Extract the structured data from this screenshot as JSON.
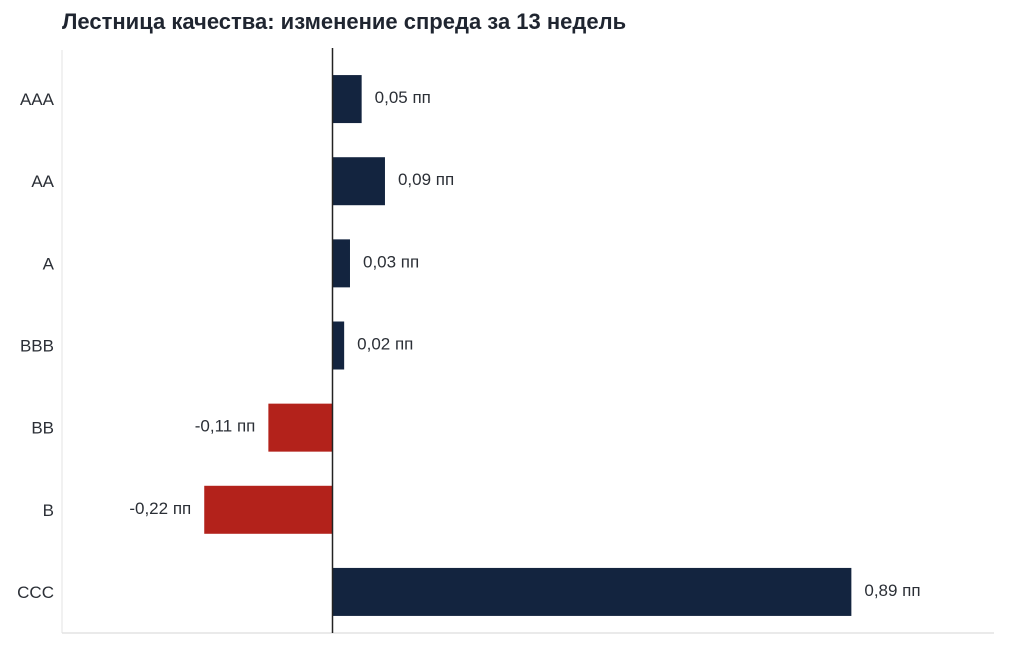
{
  "chart_data": {
    "type": "bar",
    "orientation": "horizontal",
    "title": "Лестница качества: изменение спреда за 13 недель",
    "categories": [
      "AAA",
      "AA",
      "A",
      "BBB",
      "BB",
      "B",
      "CCC"
    ],
    "values": [
      0.05,
      0.09,
      0.03,
      0.02,
      -0.11,
      -0.22,
      0.89
    ],
    "data_labels": [
      "0,05 пп",
      "0,09 пп",
      "0,03 пп",
      "0,02 пп",
      "-0,11 пп",
      "-0,22 пп",
      "0,89 пп"
    ],
    "xlabel": "",
    "ylabel": "",
    "xlim": [
      -0.465,
      1.14
    ],
    "grid": false,
    "legend": "none",
    "colors": {
      "positive": "#13243f",
      "negative": "#b3221b",
      "zero_line": "#222222",
      "axis": "#e3e3e3"
    }
  }
}
